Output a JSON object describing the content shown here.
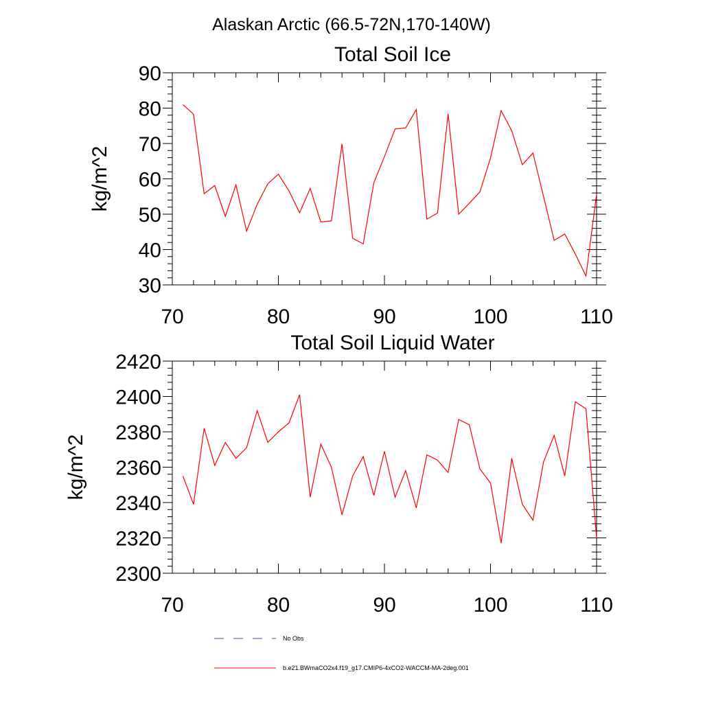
{
  "figure": {
    "title": "Alaskan Arctic (66.5-72N,170-140W)"
  },
  "colors": {
    "model_line": "#ff0000",
    "obs_line": "#4a4a9a",
    "axis": "#000000",
    "background": "#ffffff"
  },
  "legend": {
    "entries": [
      {
        "label": "No Obs",
        "style": "dashed",
        "color": "#4a4a9a"
      },
      {
        "label": "b.e21.BWmaCO2x4.f19_g17.CMIP6-4xCO2-WACCM-MA-2deg.001",
        "style": "solid",
        "color": "#ff0000"
      }
    ]
  },
  "chart_data": [
    {
      "type": "line",
      "title": "Total Soil Ice",
      "xlabel": "",
      "ylabel": "kg/m^2",
      "xlim": [
        70,
        110
      ],
      "ylim": [
        30,
        90
      ],
      "xticks": [
        70,
        80,
        90,
        100,
        110
      ],
      "yticks": [
        30,
        40,
        50,
        60,
        70,
        80,
        90
      ],
      "grid": false,
      "x": [
        71,
        72,
        73,
        74,
        75,
        76,
        77,
        78,
        79,
        80,
        81,
        82,
        83,
        84,
        85,
        86,
        87,
        88,
        89,
        90,
        91,
        92,
        93,
        94,
        95,
        96,
        97,
        98,
        99,
        100,
        101,
        102,
        103,
        104,
        105,
        106,
        107,
        108,
        109,
        110
      ],
      "series": [
        {
          "name": "b.e21.BWmaCO2x4.f19_g17.CMIP6-4xCO2-WACCM-MA-2deg.001",
          "values": [
            81,
            78.3,
            55.8,
            58.1,
            49.4,
            58.3,
            45.2,
            52.8,
            58.6,
            61.3,
            56.6,
            50.4,
            57.3,
            47.8,
            48.1,
            69.9,
            43.2,
            41.6,
            58.9,
            66.3,
            74.1,
            74.4,
            79.6,
            48.6,
            50.3,
            78.4,
            50,
            53.1,
            56.3,
            65.9,
            79.3,
            73.6,
            64,
            67.3,
            55,
            42.6,
            44.4,
            38.7,
            32.5,
            55.7
          ]
        }
      ]
    },
    {
      "type": "line",
      "title": "Total Soil Liquid Water",
      "xlabel": "",
      "ylabel": "kg/m^2",
      "xlim": [
        70,
        110
      ],
      "ylim": [
        2300,
        2420
      ],
      "xticks": [
        70,
        80,
        90,
        100,
        110
      ],
      "yticks": [
        2300,
        2320,
        2340,
        2360,
        2380,
        2400,
        2420
      ],
      "grid": false,
      "x": [
        71,
        72,
        73,
        74,
        75,
        76,
        77,
        78,
        79,
        80,
        81,
        82,
        83,
        84,
        85,
        86,
        87,
        88,
        89,
        90,
        91,
        92,
        93,
        94,
        95,
        96,
        97,
        98,
        99,
        100,
        101,
        102,
        103,
        104,
        105,
        106,
        107,
        108,
        109,
        110
      ],
      "series": [
        {
          "name": "b.e21.BWmaCO2x4.f19_g17.CMIP6-4xCO2-WACCM-MA-2deg.001",
          "values": [
            2355,
            2339,
            2382,
            2361,
            2374,
            2365,
            2371,
            2392,
            2374,
            2380,
            2385,
            2401,
            2343,
            2373,
            2360,
            2333,
            2355,
            2366,
            2344,
            2369,
            2343,
            2358,
            2337,
            2367,
            2364,
            2357,
            2387,
            2384,
            2359,
            2351,
            2317,
            2365,
            2339,
            2330,
            2363,
            2378,
            2355,
            2397,
            2393,
            2320
          ]
        }
      ]
    }
  ]
}
